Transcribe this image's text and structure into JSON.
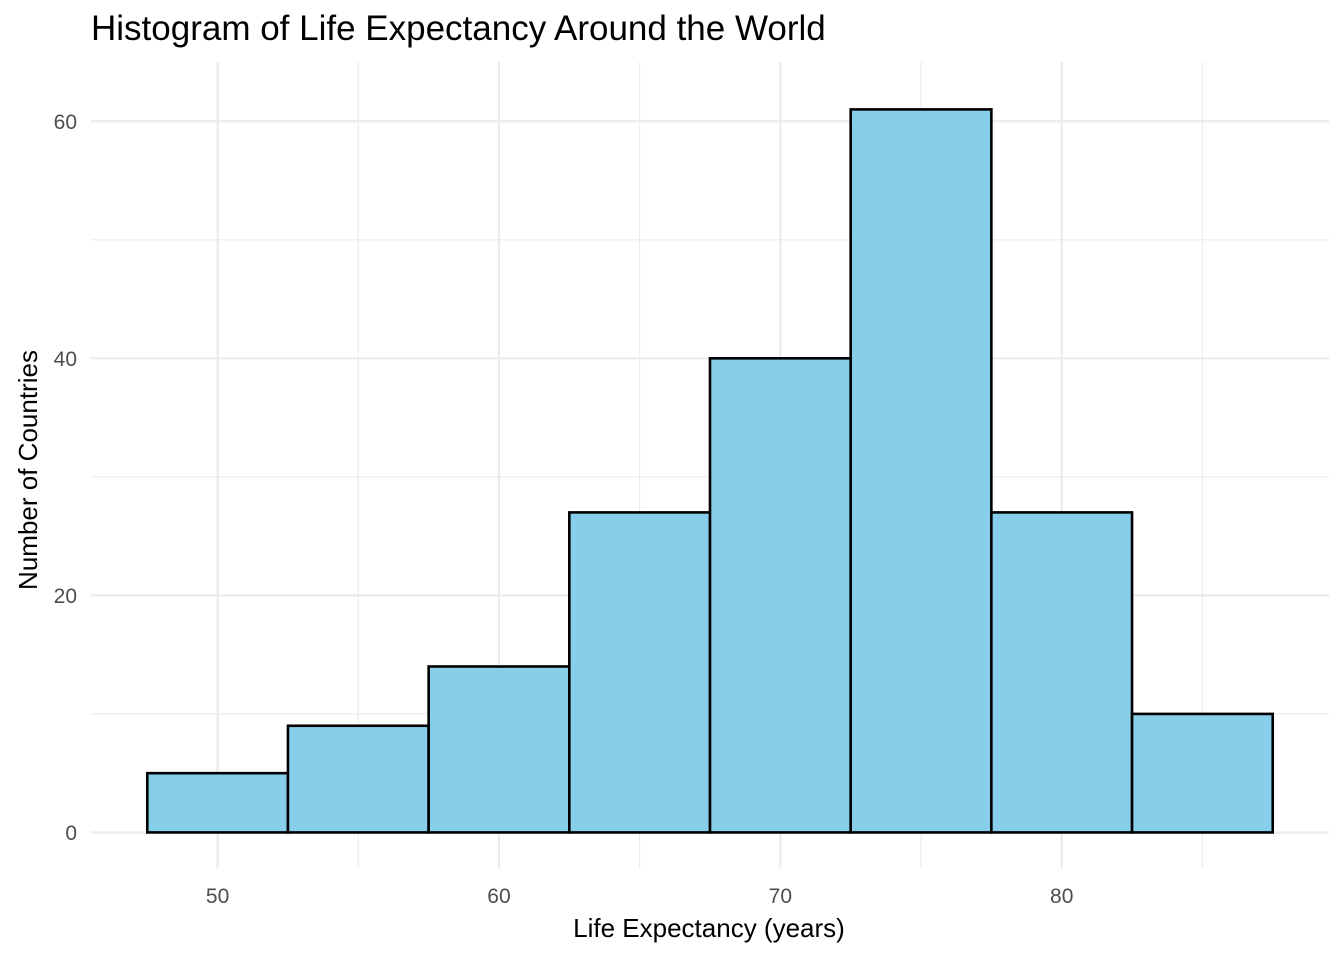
{
  "chart_data": {
    "type": "bar",
    "subtype": "histogram",
    "title": "Histogram of Life Expectancy Around the World",
    "xlabel": "Life Expectancy (years)",
    "ylabel": "Number of Countries",
    "bins": [
      {
        "start": 47.5,
        "end": 52.5,
        "count": 5
      },
      {
        "start": 52.5,
        "end": 57.5,
        "count": 9
      },
      {
        "start": 57.5,
        "end": 62.5,
        "count": 14
      },
      {
        "start": 62.5,
        "end": 67.5,
        "count": 27
      },
      {
        "start": 67.5,
        "end": 72.5,
        "count": 40
      },
      {
        "start": 72.5,
        "end": 77.5,
        "count": 61
      },
      {
        "start": 77.5,
        "end": 82.5,
        "count": 27
      },
      {
        "start": 82.5,
        "end": 87.5,
        "count": 10
      }
    ],
    "x_ticks": [
      50,
      60,
      70,
      80
    ],
    "y_ticks": [
      0,
      20,
      40,
      60
    ],
    "xlim": [
      45.5,
      89.5
    ],
    "ylim": [
      -3,
      65
    ],
    "grid": true,
    "bar_fill": "#87CEEB",
    "bar_outline": "#000000",
    "grid_color": "#ebebeb",
    "legend": "none"
  }
}
